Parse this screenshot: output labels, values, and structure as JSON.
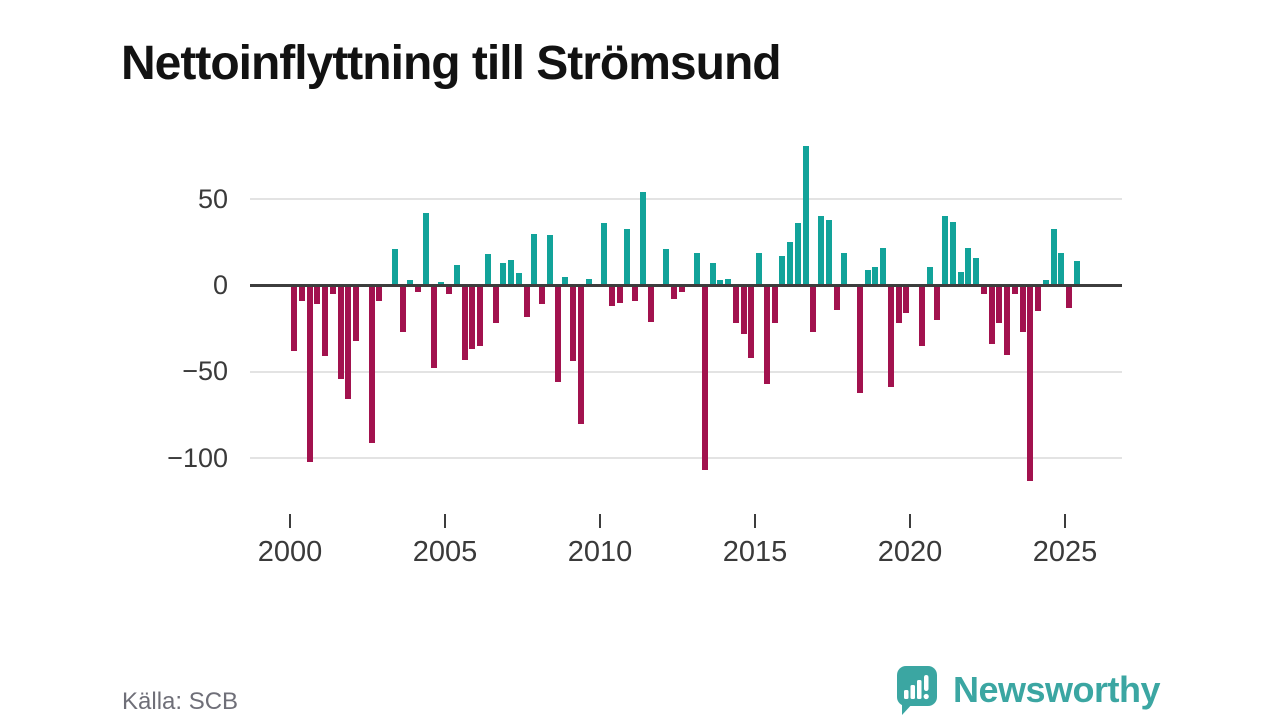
{
  "title": "Nettoinflyttning till Strömsund",
  "source": "Källa: SCB",
  "brand": {
    "name": "Newsworthy",
    "color": "#3ba6a2"
  },
  "colors": {
    "positive": "#12a39a",
    "negative": "#a2124e",
    "grid": "#e3e3e3",
    "zero_axis": "#3d3d3d",
    "tick_label": "#3a3a3a",
    "source_text": "#6f6f78"
  },
  "chart_data": {
    "type": "bar",
    "title": "Nettoinflyttning till Strömsund",
    "frequency": "quarterly",
    "x_start": {
      "year": 2000,
      "quarter": 1
    },
    "x_end": {
      "year": 2025,
      "quarter": 2
    },
    "xticks": [
      2000,
      2005,
      2010,
      2015,
      2020,
      2025
    ],
    "yticks": [
      50,
      0,
      -50,
      -100
    ],
    "ytick_labels": [
      "50",
      "0",
      "−50",
      "−100"
    ],
    "ylim": [
      -120,
      85
    ],
    "grid": "horizontal",
    "legend": "none",
    "positive_color": "#12a39a",
    "negative_color": "#a2124e",
    "values": [
      -38,
      -9,
      -102,
      -11,
      -41,
      -5,
      -54,
      -66,
      -32,
      0,
      -91,
      -9,
      0,
      21,
      -27,
      3,
      -4,
      42,
      -48,
      2,
      -5,
      12,
      -43,
      -37,
      -35,
      18,
      -22,
      13,
      15,
      7,
      -18,
      30,
      -11,
      29,
      -56,
      5,
      -44,
      -80,
      4,
      0,
      36,
      -12,
      -10,
      33,
      -9,
      54,
      -21,
      0,
      21,
      -8,
      -4,
      0,
      19,
      -107,
      13,
      3,
      4,
      -22,
      -28,
      -42,
      19,
      -57,
      -22,
      17,
      25,
      36,
      81,
      -27,
      40,
      38,
      -14,
      19,
      0,
      -62,
      9,
      11,
      22,
      -59,
      -22,
      -16,
      0,
      -35,
      11,
      -20,
      40,
      37,
      8,
      22,
      16,
      -5,
      -34,
      -22,
      -40,
      -5,
      -27,
      -113,
      -15,
      3,
      33,
      19,
      -13,
      14
    ]
  }
}
